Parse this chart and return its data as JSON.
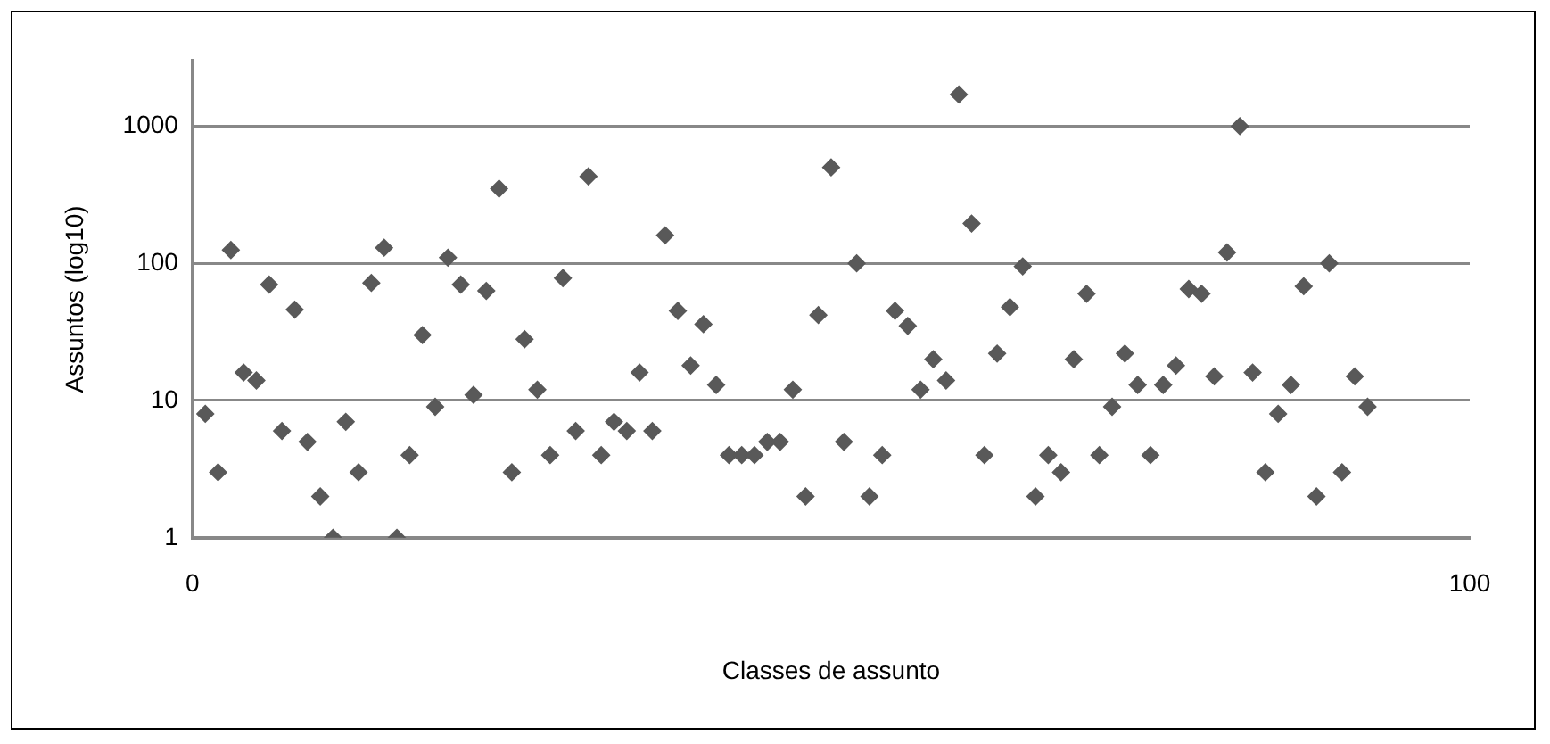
{
  "chart_data": {
    "type": "scatter",
    "xlabel": "Classes de assunto",
    "ylabel": "Assuntos (log10)",
    "log": "y",
    "xlim": [
      0,
      100
    ],
    "xticks": [
      0,
      100
    ],
    "ylim": [
      1,
      3000
    ],
    "yticks": [
      1,
      10,
      100,
      1000
    ],
    "grid": "y",
    "legend": false,
    "marker": "diamond",
    "series": [
      {
        "color": "#595959",
        "x": [
          1,
          2,
          3,
          4,
          5,
          6,
          7,
          8,
          9,
          10,
          11,
          12,
          13,
          14,
          15,
          16,
          17,
          18,
          19,
          20,
          21,
          22,
          23,
          24,
          25,
          26,
          27,
          28,
          29,
          30,
          31,
          32,
          33,
          34,
          35,
          36,
          37,
          38,
          39,
          40,
          41,
          42,
          43,
          44,
          45,
          46,
          47,
          48,
          49,
          50,
          51,
          52,
          53,
          54,
          55,
          56,
          57,
          58,
          59,
          60,
          61,
          62,
          63,
          64,
          65,
          66,
          67,
          68,
          69,
          70,
          71,
          72,
          73,
          74,
          75,
          76,
          77,
          78,
          79,
          80,
          81,
          82,
          83,
          84,
          85,
          86,
          87,
          88,
          89,
          90,
          91,
          92
        ],
        "values": [
          8,
          3,
          125,
          16,
          14,
          70,
          6,
          46,
          5,
          2,
          1,
          7,
          3,
          72,
          130,
          1,
          4,
          30,
          9,
          110,
          70,
          11,
          63,
          350,
          3,
          28,
          12,
          4,
          78,
          6,
          430,
          4,
          7,
          6,
          16,
          6,
          160,
          45,
          18,
          36,
          13,
          4,
          4,
          4,
          5,
          5,
          12,
          2,
          42,
          500,
          5,
          100,
          2,
          4,
          45,
          35,
          12,
          20,
          14,
          1700,
          195,
          4,
          22,
          48,
          95,
          2,
          4,
          3,
          20,
          60,
          4,
          9,
          22,
          13,
          4,
          13,
          18,
          65,
          60,
          15,
          120,
          1000,
          16,
          3,
          8,
          13,
          68,
          2,
          100,
          3,
          15,
          9
        ]
      }
    ]
  }
}
